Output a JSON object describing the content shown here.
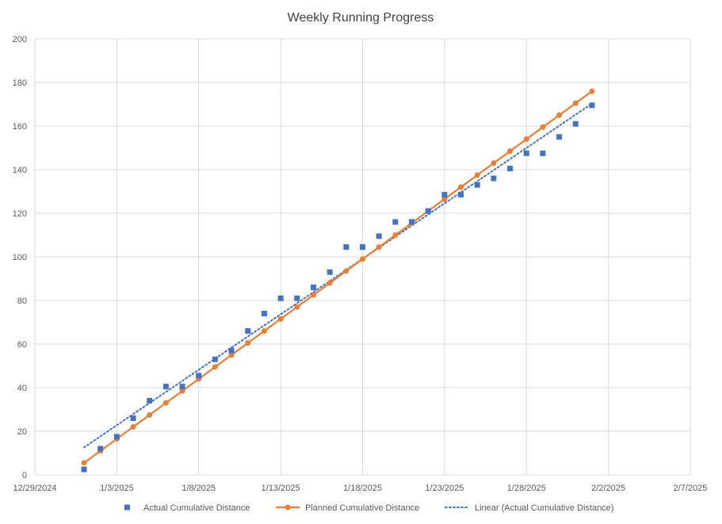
{
  "chart_data": {
    "type": "scatter",
    "title": "Weekly Running Progress",
    "xlabel": "",
    "ylabel": "",
    "xlim": [
      "2024-12-29",
      "2025-02-07"
    ],
    "ylim": [
      0,
      200
    ],
    "x_ticks": [
      "12/29/2024",
      "1/3/2025",
      "1/8/2025",
      "1/13/2025",
      "1/18/2025",
      "1/23/2025",
      "1/28/2025",
      "2/2/2025",
      "2/7/2025"
    ],
    "y_ticks": [
      "0",
      "20",
      "40",
      "60",
      "80",
      "100",
      "120",
      "140",
      "160",
      "180",
      "200"
    ],
    "grid": true,
    "legend_position": "bottom",
    "x": [
      "2025-01-01",
      "2025-01-02",
      "2025-01-03",
      "2025-01-04",
      "2025-01-05",
      "2025-01-06",
      "2025-01-07",
      "2025-01-08",
      "2025-01-09",
      "2025-01-10",
      "2025-01-11",
      "2025-01-12",
      "2025-01-13",
      "2025-01-14",
      "2025-01-15",
      "2025-01-16",
      "2025-01-17",
      "2025-01-18",
      "2025-01-19",
      "2025-01-20",
      "2025-01-21",
      "2025-01-22",
      "2025-01-23",
      "2025-01-24",
      "2025-01-25",
      "2025-01-26",
      "2025-01-27",
      "2025-01-28",
      "2025-01-29",
      "2025-01-30",
      "2025-01-31",
      "2025-02-01"
    ],
    "series": [
      {
        "name": "Actual Cumulative Distance",
        "marker": "square",
        "color": "#4472c4",
        "values": [
          2.5,
          12,
          17.5,
          26,
          34,
          40.5,
          40.5,
          45.5,
          53,
          57,
          66,
          74,
          81,
          81,
          86,
          93,
          104.5,
          104.5,
          109.5,
          116,
          116,
          121,
          128.5,
          128.5,
          133,
          136,
          140.5,
          147.5,
          147.5,
          155,
          161,
          169.5
        ]
      },
      {
        "name": "Planned Cumulative Distance",
        "marker": "circle",
        "line": "solid",
        "color": "#ed7d31",
        "values": [
          5.5,
          11,
          16.5,
          22,
          27.5,
          33,
          38.5,
          44,
          49.5,
          55,
          60.5,
          66,
          71.5,
          77,
          82.5,
          88,
          93.5,
          99,
          104.5,
          110,
          115.5,
          121,
          126.5,
          132,
          137.5,
          143,
          148.5,
          154,
          159.5,
          165,
          170.5,
          176
        ]
      },
      {
        "name": "Linear (Actual Cumulative Distance)",
        "line": "dotted",
        "color": "#4472c4",
        "trendline_of": "Actual Cumulative Distance",
        "values": [
          12.6,
          170.3
        ]
      }
    ]
  }
}
